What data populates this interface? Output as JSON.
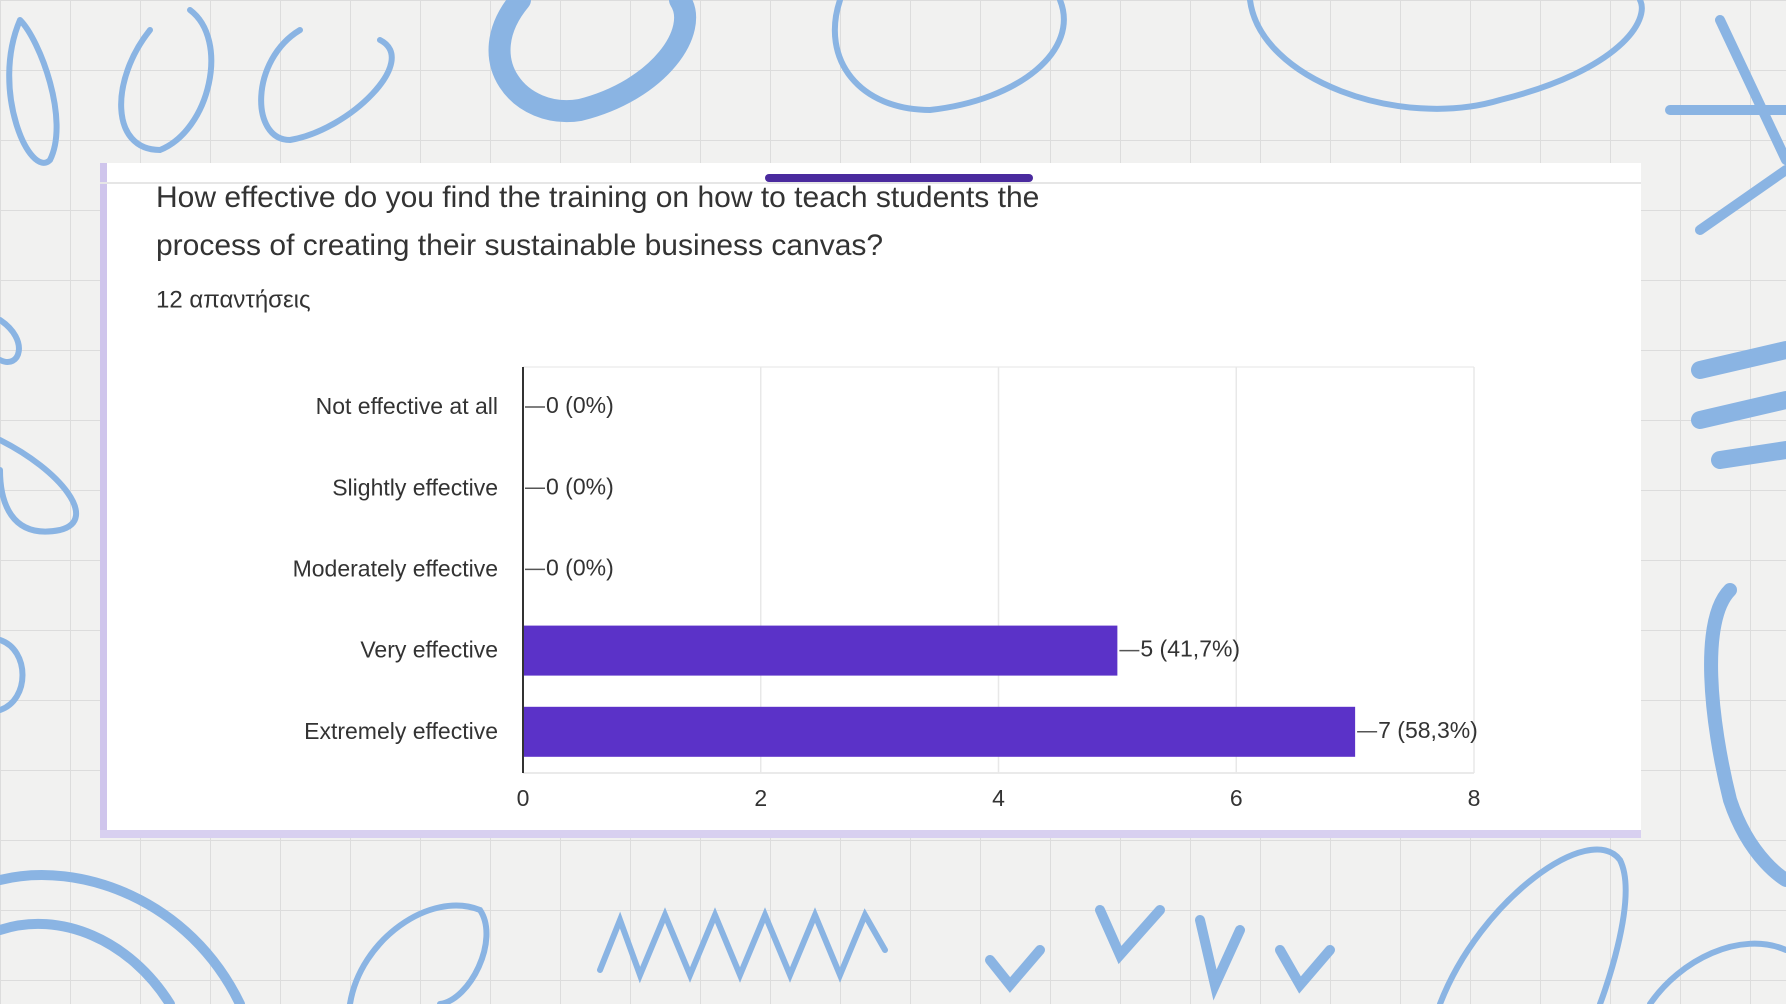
{
  "chart_data": {
    "type": "bar",
    "orientation": "horizontal",
    "title": "How effective do you find the training on how to teach students the process of creating their sustainable business canvas?",
    "subtitle": "12 απαντήσεις",
    "categories": [
      "Not effective at all",
      "Slightly effective",
      "Moderately effective",
      "Very effective",
      "Extremely effective"
    ],
    "values": [
      0,
      0,
      0,
      5,
      7
    ],
    "value_labels": [
      "0 (0%)",
      "0 (0%)",
      "0 (0%)",
      "5 (41,7%)",
      "7 (58,3%)"
    ],
    "color": "#5b32c8",
    "xlim": [
      0,
      8
    ],
    "xticks": [
      0,
      2,
      4,
      6,
      8
    ],
    "grid": true
  }
}
